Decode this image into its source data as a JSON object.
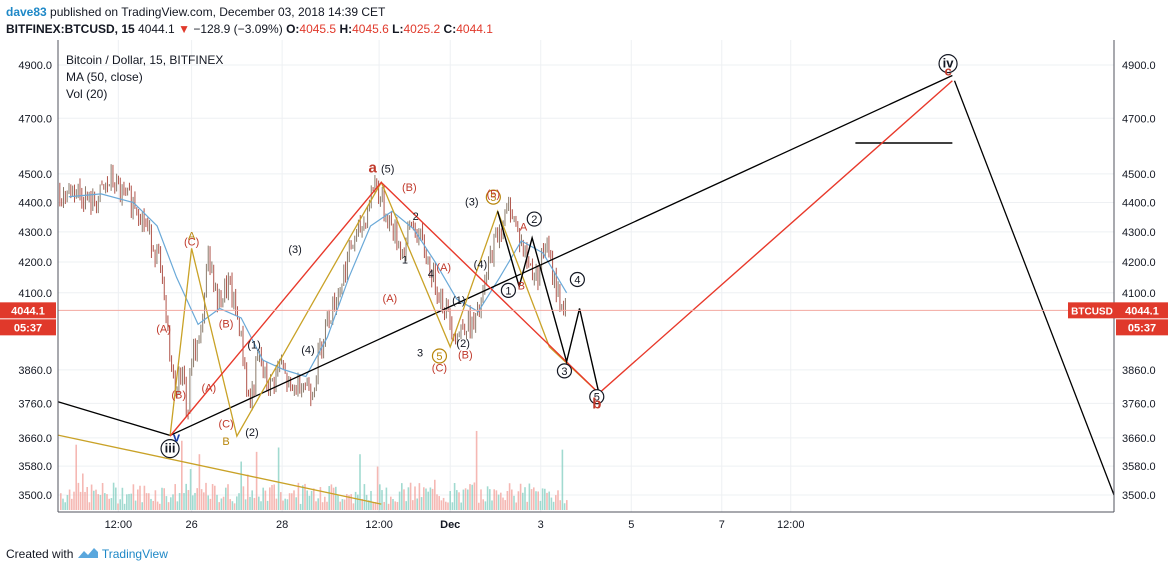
{
  "header": {
    "user": "dave83",
    "published_text": "published on TradingView.com, December 03, 2018 14:39 CET",
    "symbol": "BITFINEX:BTCUSD, 15",
    "last": "4044.1",
    "change": "−128.9 (−3.09%)",
    "o_label": "O:",
    "o": "4045.5",
    "h_label": "H:",
    "h": "4045.6",
    "l_label": "L:",
    "l": "4025.2",
    "c_label": "C:",
    "c": "4044.1"
  },
  "legend": {
    "title": "Bitcoin / Dollar, 15, BITFINEX",
    "ma": "MA (50, close)",
    "vol": "Vol (20)"
  },
  "footer": {
    "created_with": "Created with",
    "brand": "TradingView"
  },
  "colors": {
    "up": "#8a7a6a",
    "down": "#b0544a",
    "ma": "#6aa9d8",
    "red_line": "#e8392b",
    "gold_line": "#c9a227",
    "black_line": "#000000",
    "wave_red": "#c0392b",
    "wave_black": "#131722",
    "wave_gold": "#b8860b",
    "vol_up": "#89d1c4",
    "vol_down": "#f3a6a0",
    "price_tag": "#e0392b"
  },
  "chart_data": {
    "type": "line",
    "title": "Bitcoin / Dollar, 15, BITFINEX",
    "symbol": "BITFINEX:BTCUSD",
    "scale": "log",
    "y_ticks": [
      "4900.0",
      "4700.0",
      "4500.0",
      "4400.0",
      "4300.0",
      "4200.0",
      "4100.0",
      "3860.0",
      "3760.0",
      "3660.0",
      "3580.0",
      "3500.0"
    ],
    "x_ticks": [
      "12:00",
      "26",
      "28",
      "12:00",
      "Dec",
      "3",
      "5",
      "7",
      "12:00"
    ],
    "last_price": "4044.1",
    "price_tag": "BTCUSD",
    "countdown": "05:37",
    "price_path": [
      {
        "t": 0.0,
        "p": 4420
      },
      {
        "t": 0.8,
        "p": 4450
      },
      {
        "t": 1.6,
        "p": 4390
      },
      {
        "t": 2.5,
        "p": 4480
      },
      {
        "t": 3.0,
        "p": 4420
      },
      {
        "t": 3.6,
        "p": 4400
      },
      {
        "t": 4.2,
        "p": 4300
      },
      {
        "t": 4.7,
        "p": 4200
      },
      {
        "t": 5.1,
        "p": 3960
      },
      {
        "t": 5.4,
        "p": 3800
      },
      {
        "t": 5.8,
        "p": 3870
      },
      {
        "t": 6.0,
        "p": 3700
      },
      {
        "t": 6.2,
        "p": 3900
      },
      {
        "t": 6.6,
        "p": 3950
      },
      {
        "t": 7.0,
        "p": 4240
      },
      {
        "t": 7.4,
        "p": 4060
      },
      {
        "t": 7.9,
        "p": 4130
      },
      {
        "t": 8.4,
        "p": 4000
      },
      {
        "t": 8.9,
        "p": 3750
      },
      {
        "t": 9.3,
        "p": 3900
      },
      {
        "t": 9.8,
        "p": 3800
      },
      {
        "t": 10.3,
        "p": 3880
      },
      {
        "t": 10.8,
        "p": 3790
      },
      {
        "t": 11.3,
        "p": 3830
      },
      {
        "t": 11.8,
        "p": 3800
      },
      {
        "t": 12.4,
        "p": 4000
      },
      {
        "t": 13.0,
        "p": 4100
      },
      {
        "t": 13.6,
        "p": 4250
      },
      {
        "t": 14.2,
        "p": 4330
      },
      {
        "t": 14.7,
        "p": 4480
      },
      {
        "t": 15.1,
        "p": 4380
      },
      {
        "t": 15.6,
        "p": 4300
      },
      {
        "t": 16.0,
        "p": 4230
      },
      {
        "t": 16.4,
        "p": 4330
      },
      {
        "t": 16.9,
        "p": 4260
      },
      {
        "t": 17.3,
        "p": 4170
      },
      {
        "t": 17.7,
        "p": 4100
      },
      {
        "t": 18.1,
        "p": 4030
      },
      {
        "t": 18.5,
        "p": 3960
      },
      {
        "t": 18.9,
        "p": 4010
      },
      {
        "t": 19.3,
        "p": 3990
      },
      {
        "t": 19.7,
        "p": 4080
      },
      {
        "t": 20.1,
        "p": 4230
      },
      {
        "t": 20.5,
        "p": 4310
      },
      {
        "t": 21.0,
        "p": 4390
      },
      {
        "t": 21.4,
        "p": 4280
      },
      {
        "t": 21.8,
        "p": 4200
      },
      {
        "t": 22.2,
        "p": 4150
      },
      {
        "t": 22.6,
        "p": 4260
      },
      {
        "t": 23.0,
        "p": 4150
      },
      {
        "t": 23.3,
        "p": 4070
      },
      {
        "t": 23.6,
        "p": 4044.1
      }
    ],
    "ma_path": [
      {
        "t": 0.5,
        "p": 4420
      },
      {
        "t": 2.0,
        "p": 4430
      },
      {
        "t": 3.5,
        "p": 4400
      },
      {
        "t": 4.6,
        "p": 4320
      },
      {
        "t": 5.5,
        "p": 4150
      },
      {
        "t": 6.5,
        "p": 4000
      },
      {
        "t": 7.5,
        "p": 4050
      },
      {
        "t": 8.5,
        "p": 4020
      },
      {
        "t": 9.5,
        "p": 3890
      },
      {
        "t": 10.5,
        "p": 3860
      },
      {
        "t": 11.5,
        "p": 3840
      },
      {
        "t": 12.5,
        "p": 3960
      },
      {
        "t": 13.5,
        "p": 4150
      },
      {
        "t": 14.5,
        "p": 4320
      },
      {
        "t": 15.5,
        "p": 4370
      },
      {
        "t": 16.5,
        "p": 4310
      },
      {
        "t": 17.5,
        "p": 4200
      },
      {
        "t": 18.5,
        "p": 4080
      },
      {
        "t": 19.5,
        "p": 4040
      },
      {
        "t": 20.5,
        "p": 4150
      },
      {
        "t": 21.5,
        "p": 4270
      },
      {
        "t": 22.5,
        "p": 4230
      },
      {
        "t": 23.6,
        "p": 4100
      }
    ],
    "drawings": {
      "black_trend_line": [
        {
          "t": 0.0,
          "p": 3765
        },
        {
          "t": 5.2,
          "p": 3667
        },
        {
          "t": 41.5,
          "p": 4860
        }
      ],
      "black_projection": [
        {
          "t": 41.6,
          "p": 4840
        },
        {
          "t": 49.0,
          "p": 3500
        }
      ],
      "black_horizontal": [
        {
          "t": 37.0,
          "p": 4610
        },
        {
          "t": 41.5,
          "p": 4610
        }
      ],
      "gold_channel_line": [
        {
          "t": 0.0,
          "p": 3668
        },
        {
          "t": 15.0,
          "p": 3475
        }
      ],
      "red_abc": [
        {
          "t": 5.2,
          "p": 3665
        },
        {
          "t": 15.0,
          "p": 4470
        },
        {
          "t": 25.1,
          "p": 3790
        },
        {
          "t": 41.5,
          "p": 4840
        }
      ],
      "gold_zigzag": [
        {
          "t": 5.2,
          "p": 3665
        },
        {
          "t": 6.2,
          "p": 4245
        },
        {
          "t": 8.3,
          "p": 3665
        },
        {
          "t": 15.0,
          "p": 4470
        },
        {
          "t": 18.2,
          "p": 3930
        },
        {
          "t": 20.4,
          "p": 4370
        },
        {
          "t": 22.8,
          "p": 3930
        },
        {
          "t": 25.1,
          "p": 3790
        }
      ],
      "black_zigzag": [
        {
          "t": 20.4,
          "p": 4370
        },
        {
          "t": 21.4,
          "p": 4120
        },
        {
          "t": 22.0,
          "p": 4280
        },
        {
          "t": 23.6,
          "p": 3885
        },
        {
          "t": 24.2,
          "p": 4050
        },
        {
          "t": 25.1,
          "p": 3790
        }
      ]
    },
    "wave_labels": [
      {
        "text": "iii",
        "t": 5.2,
        "p": 3618,
        "style": "circle-bold",
        "color": "wave_black"
      },
      {
        "text": "v",
        "t": 5.5,
        "p": 3650,
        "style": "plain-bold",
        "color": "#1a3fa8"
      },
      {
        "text": "(A)",
        "t": 4.9,
        "p": 3975,
        "style": "plain",
        "color": "wave_red"
      },
      {
        "text": "(C)",
        "t": 6.2,
        "p": 4255,
        "style": "plain",
        "color": "wave_red"
      },
      {
        "text": "A",
        "t": 6.2,
        "p": 4275,
        "style": "plain",
        "color": "wave_gold"
      },
      {
        "text": "(B)",
        "t": 5.6,
        "p": 3775,
        "style": "plain",
        "color": "wave_red"
      },
      {
        "text": "(B)",
        "t": 7.8,
        "p": 3990,
        "style": "plain",
        "color": "wave_red"
      },
      {
        "text": "(A)",
        "t": 7.0,
        "p": 3795,
        "style": "plain",
        "color": "wave_red"
      },
      {
        "text": "(C)",
        "t": 7.8,
        "p": 3690,
        "style": "plain",
        "color": "wave_red"
      },
      {
        "text": "B",
        "t": 7.8,
        "p": 3640,
        "style": "plain",
        "color": "wave_gold"
      },
      {
        "text": "(1)",
        "t": 9.1,
        "p": 3925,
        "style": "plain",
        "color": "wave_black"
      },
      {
        "text": "(2)",
        "t": 9.0,
        "p": 3665,
        "style": "plain",
        "color": "wave_black"
      },
      {
        "text": "(3)",
        "t": 11.0,
        "p": 4230,
        "style": "plain",
        "color": "wave_black"
      },
      {
        "text": "(4)",
        "t": 11.6,
        "p": 3910,
        "style": "plain",
        "color": "wave_black"
      },
      {
        "text": "a",
        "t": 14.6,
        "p": 4505,
        "style": "plain-bold-big",
        "color": "wave_red"
      },
      {
        "text": "(5)",
        "t": 15.3,
        "p": 4505,
        "style": "plain",
        "color": "wave_black"
      },
      {
        "text": "(B)",
        "t": 16.3,
        "p": 4440,
        "style": "plain",
        "color": "wave_red"
      },
      {
        "text": "2",
        "t": 16.6,
        "p": 4340,
        "style": "plain",
        "color": "wave_black"
      },
      {
        "text": "1",
        "t": 16.1,
        "p": 4195,
        "style": "plain",
        "color": "wave_black"
      },
      {
        "text": "(A)",
        "t": 15.4,
        "p": 4070,
        "style": "plain",
        "color": "wave_red"
      },
      {
        "text": "4",
        "t": 17.3,
        "p": 4150,
        "style": "plain",
        "color": "wave_black"
      },
      {
        "text": "(A)",
        "t": 17.9,
        "p": 4170,
        "style": "plain",
        "color": "wave_red"
      },
      {
        "text": "3",
        "t": 16.8,
        "p": 3900,
        "style": "plain",
        "color": "wave_black"
      },
      {
        "text": "5",
        "t": 17.7,
        "p": 3890,
        "style": "circle",
        "color": "wave_gold"
      },
      {
        "text": "(C)",
        "t": 17.7,
        "p": 3855,
        "style": "plain",
        "color": "wave_red"
      },
      {
        "text": "(B)",
        "t": 18.9,
        "p": 3895,
        "style": "plain",
        "color": "wave_red"
      },
      {
        "text": "(2)",
        "t": 18.8,
        "p": 3930,
        "style": "plain",
        "color": "wave_black"
      },
      {
        "text": "(1)",
        "t": 18.6,
        "p": 4065,
        "style": "plain",
        "color": "wave_black"
      },
      {
        "text": "(4)",
        "t": 19.6,
        "p": 4180,
        "style": "plain",
        "color": "wave_black"
      },
      {
        "text": "(3)",
        "t": 19.2,
        "p": 4390,
        "style": "plain",
        "color": "wave_black"
      },
      {
        "text": "5",
        "t": 20.2,
        "p": 4405,
        "style": "circle",
        "color": "wave_gold"
      },
      {
        "text": "(5)",
        "t": 20.2,
        "p": 4418,
        "style": "plain",
        "color": "wave_red"
      },
      {
        "text": "1",
        "t": 20.9,
        "p": 4095,
        "style": "circle",
        "color": "wave_black"
      },
      {
        "text": "A",
        "t": 21.6,
        "p": 4305,
        "style": "plain",
        "color": "wave_red"
      },
      {
        "text": "2",
        "t": 22.1,
        "p": 4330,
        "style": "circle",
        "color": "wave_black"
      },
      {
        "text": "B",
        "t": 21.5,
        "p": 4110,
        "style": "plain",
        "color": "wave_red"
      },
      {
        "text": "3",
        "t": 23.5,
        "p": 3845,
        "style": "circle",
        "color": "wave_black"
      },
      {
        "text": "4",
        "t": 24.1,
        "p": 4130,
        "style": "circle",
        "color": "wave_black"
      },
      {
        "text": "5",
        "t": 25.0,
        "p": 3768,
        "style": "circle",
        "color": "wave_black"
      },
      {
        "text": "b",
        "t": 25.0,
        "p": 3745,
        "style": "plain-bold-big",
        "color": "wave_red"
      },
      {
        "text": "iv",
        "t": 41.3,
        "p": 4890,
        "style": "circle-bold",
        "color": "wave_black"
      },
      {
        "text": "c",
        "t": 41.3,
        "p": 4860,
        "style": "plain-bold",
        "color": "wave_red"
      }
    ],
    "x_axis_ticks": [
      {
        "label": "12:00",
        "t": 2.8
      },
      {
        "label": "26",
        "t": 6.2
      },
      {
        "label": "28",
        "t": 10.4
      },
      {
        "label": "12:00",
        "t": 14.9
      },
      {
        "label": "Dec",
        "t": 18.2
      },
      {
        "label": "3",
        "t": 22.4
      },
      {
        "label": "5",
        "t": 26.6
      },
      {
        "label": "7",
        "t": 30.8
      },
      {
        "label": "12:00",
        "t": 34.0
      }
    ]
  }
}
